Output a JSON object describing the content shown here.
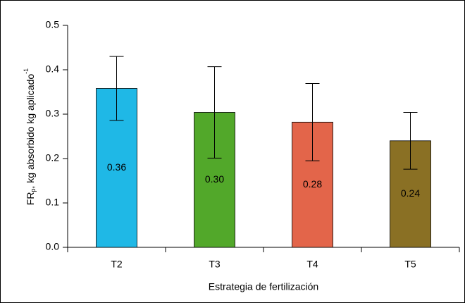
{
  "chart_data": {
    "type": "bar",
    "x_label": "Estrategia de fertilización",
    "y_label": {
      "main": "FR",
      "sub": "p",
      "rest": ", kg absorbido kg aplicado",
      "sup": "-1"
    },
    "categories": [
      "T2",
      "T3",
      "T4",
      "T5"
    ],
    "values": [
      0.358,
      0.304,
      0.282,
      0.24
    ],
    "value_labels": [
      "0.36",
      "0.30",
      "0.28",
      "0.24"
    ],
    "errors": [
      0.072,
      0.103,
      0.087,
      0.064
    ],
    "colors": [
      "#1fb8e6",
      "#52a82a",
      "#e3654a",
      "#8a7024"
    ],
    "ylim": [
      0,
      0.5
    ],
    "yticks": [
      {
        "value": 0,
        "label": "0.0"
      },
      0.1,
      0.2,
      0.3,
      0.4,
      0.5
    ]
  }
}
